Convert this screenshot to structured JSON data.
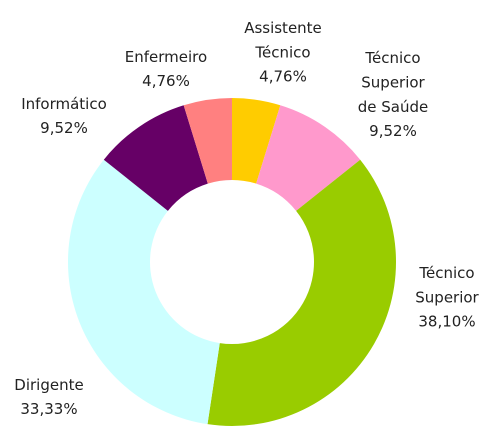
{
  "chart_data": {
    "type": "donut",
    "categories": [
      "Assistente\nTécnico",
      "Técnico\nSuperior\nde Saúde",
      "Técnico\nSuperior",
      "Dirigente",
      "Informático",
      "Enfermeiro"
    ],
    "values": [
      4.76,
      9.52,
      38.1,
      33.33,
      9.52,
      4.76
    ],
    "value_labels": [
      "4,76%",
      "9,52%",
      "38,10%",
      "33,33%",
      "9,52%",
      "4,76%"
    ],
    "colors": [
      "#ffcc00",
      "#ff99cc",
      "#99cc00",
      "#ccffff",
      "#660066",
      "#ff8080"
    ]
  }
}
